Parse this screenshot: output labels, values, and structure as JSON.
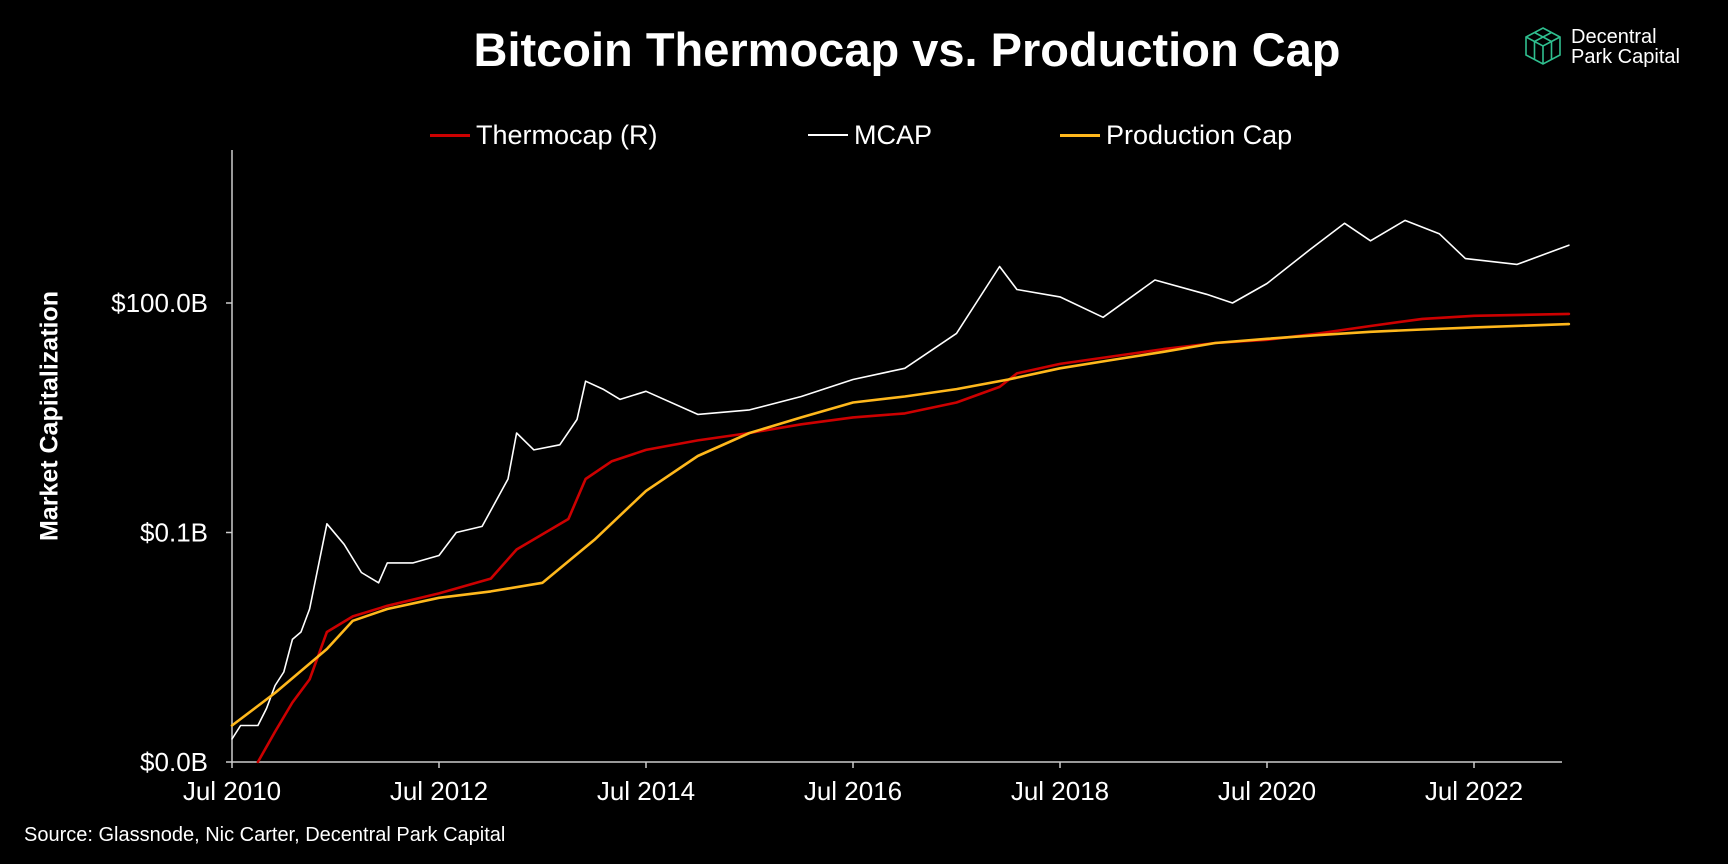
{
  "title": "Bitcoin Thermocap vs. Production Cap",
  "brand": {
    "name_line1": "Decentral",
    "name_line2": "Park Capital",
    "icon": "cube-logo-icon",
    "color": "#2fbf8f"
  },
  "source": "Source: Glassnode, Nic Carter, Decentral Park Capital",
  "chart_data": {
    "type": "line",
    "title": "Bitcoin Thermocap vs. Production Cap",
    "ylabel": "Market Capitalization",
    "xlabel": "",
    "y_scale": "log",
    "y_ticks": [
      "$0.0B",
      "$0.1B",
      "$100.0B"
    ],
    "x_ticks": [
      "Jul 2010",
      "Jul 2012",
      "Jul 2014",
      "Jul 2016",
      "Jul 2018",
      "Jul 2020",
      "Jul 2022"
    ],
    "xlim": [
      "2010-07",
      "2023-06"
    ],
    "ylim_billions": [
      0.0001,
      10000
    ],
    "grid": false,
    "legend_position": "top",
    "series": [
      {
        "name": "Thermocap (R)",
        "color": "#cc0000",
        "points": [
          [
            "2010-10",
            0.0001
          ],
          [
            "2010-12",
            0.00025
          ],
          [
            "2011-02",
            0.0006
          ],
          [
            "2011-04",
            0.0012
          ],
          [
            "2011-06",
            0.005
          ],
          [
            "2011-09",
            0.008
          ],
          [
            "2012-01",
            0.011
          ],
          [
            "2012-07",
            0.016
          ],
          [
            "2013-01",
            0.025
          ],
          [
            "2013-04",
            0.06
          ],
          [
            "2013-10",
            0.15
          ],
          [
            "2013-12",
            0.5
          ],
          [
            "2014-03",
            0.85
          ],
          [
            "2014-07",
            1.2
          ],
          [
            "2015-01",
            1.6
          ],
          [
            "2015-07",
            2.0
          ],
          [
            "2016-01",
            2.6
          ],
          [
            "2016-07",
            3.2
          ],
          [
            "2017-01",
            3.6
          ],
          [
            "2017-07",
            5.0
          ],
          [
            "2017-12",
            8.0
          ],
          [
            "2018-02",
            12.0
          ],
          [
            "2018-07",
            16.0
          ],
          [
            "2019-01",
            20.0
          ],
          [
            "2019-07",
            25.0
          ],
          [
            "2020-01",
            30.0
          ],
          [
            "2020-07",
            33.0
          ],
          [
            "2021-01",
            40.0
          ],
          [
            "2021-07",
            50.0
          ],
          [
            "2022-01",
            62.0
          ],
          [
            "2022-07",
            68.0
          ],
          [
            "2023-06",
            72.0
          ]
        ]
      },
      {
        "name": "MCAP",
        "color": "#ffffff",
        "points": [
          [
            "2010-07",
            0.0002
          ],
          [
            "2010-08",
            0.0003
          ],
          [
            "2010-10",
            0.0003
          ],
          [
            "2010-11",
            0.0005
          ],
          [
            "2010-12",
            0.001
          ],
          [
            "2011-01",
            0.0015
          ],
          [
            "2011-02",
            0.004
          ],
          [
            "2011-03",
            0.005
          ],
          [
            "2011-04",
            0.01
          ],
          [
            "2011-06",
            0.13
          ],
          [
            "2011-08",
            0.07
          ],
          [
            "2011-10",
            0.03
          ],
          [
            "2011-12",
            0.022
          ],
          [
            "2012-01",
            0.04
          ],
          [
            "2012-04",
            0.04
          ],
          [
            "2012-07",
            0.05
          ],
          [
            "2012-09",
            0.1
          ],
          [
            "2012-12",
            0.12
          ],
          [
            "2013-03",
            0.5
          ],
          [
            "2013-04",
            2.0
          ],
          [
            "2013-06",
            1.2
          ],
          [
            "2013-09",
            1.4
          ],
          [
            "2013-11",
            3.0
          ],
          [
            "2013-12",
            9.5
          ],
          [
            "2014-02",
            7.5
          ],
          [
            "2014-04",
            5.5
          ],
          [
            "2014-07",
            7.0
          ],
          [
            "2015-01",
            3.5
          ],
          [
            "2015-07",
            4.0
          ],
          [
            "2016-01",
            6.0
          ],
          [
            "2016-07",
            10.0
          ],
          [
            "2017-01",
            14.0
          ],
          [
            "2017-07",
            40.0
          ],
          [
            "2017-12",
            300.0
          ],
          [
            "2018-02",
            150.0
          ],
          [
            "2018-07",
            120.0
          ],
          [
            "2018-12",
            65.0
          ],
          [
            "2019-06",
            200.0
          ],
          [
            "2019-12",
            130.0
          ],
          [
            "2020-03",
            100.0
          ],
          [
            "2020-07",
            180.0
          ],
          [
            "2020-12",
            500.0
          ],
          [
            "2021-04",
            1100.0
          ],
          [
            "2021-07",
            650.0
          ],
          [
            "2021-11",
            1200.0
          ],
          [
            "2022-03",
            800.0
          ],
          [
            "2022-06",
            380.0
          ],
          [
            "2022-12",
            320.0
          ],
          [
            "2023-06",
            570.0
          ]
        ]
      },
      {
        "name": "Production Cap",
        "color": "#ffb81c",
        "points": [
          [
            "2010-07",
            0.0003
          ],
          [
            "2010-12",
            0.0008
          ],
          [
            "2011-06",
            0.003
          ],
          [
            "2011-09",
            0.007
          ],
          [
            "2012-01",
            0.01
          ],
          [
            "2012-07",
            0.014
          ],
          [
            "2013-01",
            0.017
          ],
          [
            "2013-07",
            0.022
          ],
          [
            "2014-01",
            0.08
          ],
          [
            "2014-07",
            0.35
          ],
          [
            "2015-01",
            1.0
          ],
          [
            "2015-07",
            2.0
          ],
          [
            "2016-01",
            3.2
          ],
          [
            "2016-07",
            5.0
          ],
          [
            "2017-01",
            6.0
          ],
          [
            "2017-07",
            7.5
          ],
          [
            "2018-01",
            10.0
          ],
          [
            "2018-07",
            14.0
          ],
          [
            "2019-01",
            18.0
          ],
          [
            "2019-07",
            23.0
          ],
          [
            "2020-01",
            30.0
          ],
          [
            "2020-07",
            34.0
          ],
          [
            "2021-01",
            38.0
          ],
          [
            "2021-07",
            42.0
          ],
          [
            "2022-01",
            45.0
          ],
          [
            "2022-07",
            48.0
          ],
          [
            "2023-06",
            53.0
          ]
        ]
      }
    ]
  }
}
